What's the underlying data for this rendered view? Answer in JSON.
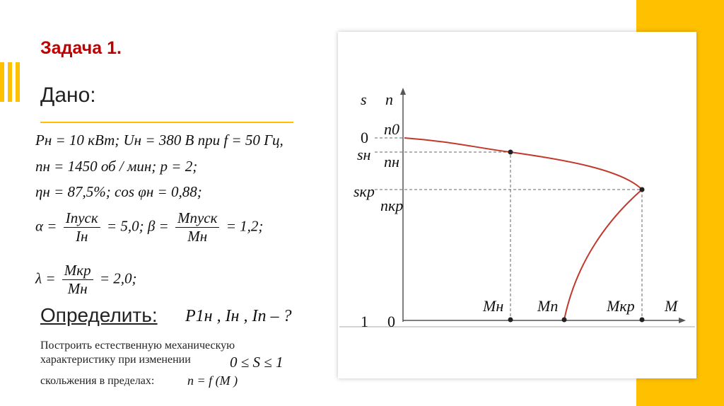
{
  "header": {
    "title": "Задача 1.",
    "given_heading": "Дано:"
  },
  "given": {
    "line1": "Pн = 10 кВт; Uн = 380 В при f = 50 Гц,",
    "line2": "nн = 1450 об / мин; p = 2;",
    "line3": "ηн = 87,5%; cos φн = 0,88;",
    "alpha": {
      "lhs": "α =",
      "num1": "Iпуск",
      "den1": "Iн",
      "mid": "= 5,0; β =",
      "num2": "Mпуск",
      "den2": "Mн",
      "end": "= 1,2;"
    },
    "lambda": {
      "lhs": "λ =",
      "num": "Mкр",
      "den": "Mн",
      "end": "= 2,0;"
    }
  },
  "determine": {
    "heading": "Определить:",
    "formula": "P1н , Iн , Iп – ?"
  },
  "task": {
    "line1": "Построить естественную механическую",
    "line2": "характеристику при изменении",
    "range": "0 ≤ S ≤ 1",
    "line3": "скольжения  в пределах:",
    "func": "n = f (M )"
  },
  "diagram": {
    "s_axis": "s",
    "n_axis": "n",
    "s0": "0",
    "n0": "n0",
    "sn": "sн",
    "nn": "nн",
    "skr": "sкр",
    "nkr": "nкр",
    "s1": "1",
    "origin": "0",
    "Mn": "Mн",
    "Mp": "Mп",
    "Mkr": "Mкр",
    "M": "M"
  }
}
